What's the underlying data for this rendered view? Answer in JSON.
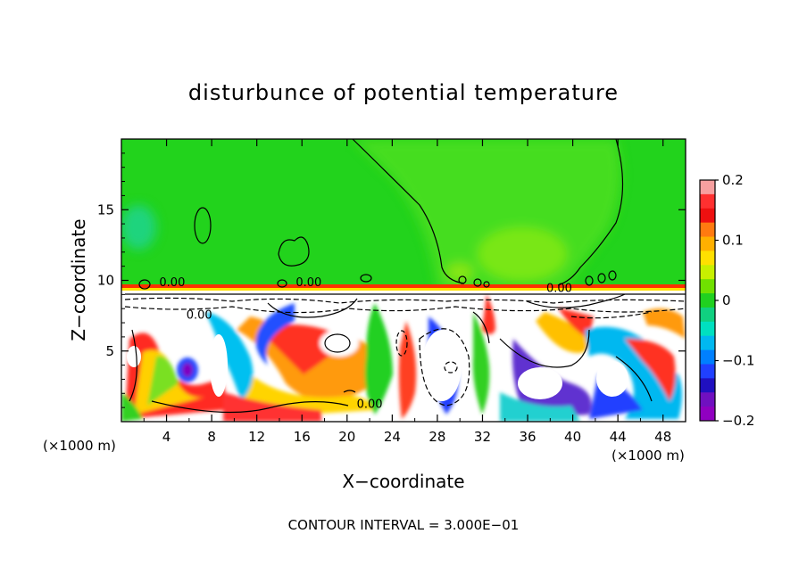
{
  "chart_data": {
    "type": "heatmap",
    "title": "disturbunce of potential temperature",
    "xlabel": "X−coordinate",
    "ylabel": "Z−coordinate",
    "x_unit_label_left": "(×1000 m)",
    "x_unit_label_right": "(×1000 m)",
    "footer": "CONTOUR INTERVAL = 3.000E−01",
    "xlim": [
      0,
      50
    ],
    "ylim": [
      0,
      20
    ],
    "x_ticks": [
      4,
      8,
      12,
      16,
      20,
      24,
      28,
      32,
      36,
      40,
      44,
      48
    ],
    "x_tick_labels": [
      "4",
      "8",
      "12",
      "16",
      "20",
      "24",
      "28",
      "32",
      "36",
      "40",
      "44",
      "48"
    ],
    "y_ticks": [
      5,
      10,
      15
    ],
    "y_tick_labels": [
      "5",
      "10",
      "15"
    ],
    "colorbar": {
      "range": [
        -0.2,
        0.2
      ],
      "tick_values": [
        0.2,
        0.1,
        0,
        -0.1,
        -0.2
      ],
      "tick_labels": [
        "0.2",
        "0.1",
        "0",
        "−0.1",
        "−0.2"
      ],
      "colors_top_to_bottom": [
        "#f7a0a0",
        "#ff3030",
        "#ee1010",
        "#ff7a10",
        "#ffb000",
        "#ffe000",
        "#c8f000",
        "#70e000",
        "#20d020",
        "#10d080",
        "#00e0c0",
        "#00b8f0",
        "#0080ff",
        "#2040ff",
        "#2010c0",
        "#7010c0",
        "#9000c0"
      ]
    },
    "contour_labels": [
      {
        "text": "0.00",
        "x": 4.5,
        "z": 9.9
      },
      {
        "text": "0.00",
        "x": 16.6,
        "z": 9.9
      },
      {
        "text": "0.00",
        "x": 6.9,
        "z": 7.6
      },
      {
        "text": "0.00",
        "x": 38.8,
        "z": 9.5
      },
      {
        "text": "0.00",
        "x": 22.0,
        "z": 1.3
      }
    ],
    "regions": {
      "upper_layer_value": 0.0,
      "tropopause_z": 9.7,
      "lower_layer_note": "turbulent mixed layer 0-9.5 km with values -0.2 to 0.2"
    }
  }
}
